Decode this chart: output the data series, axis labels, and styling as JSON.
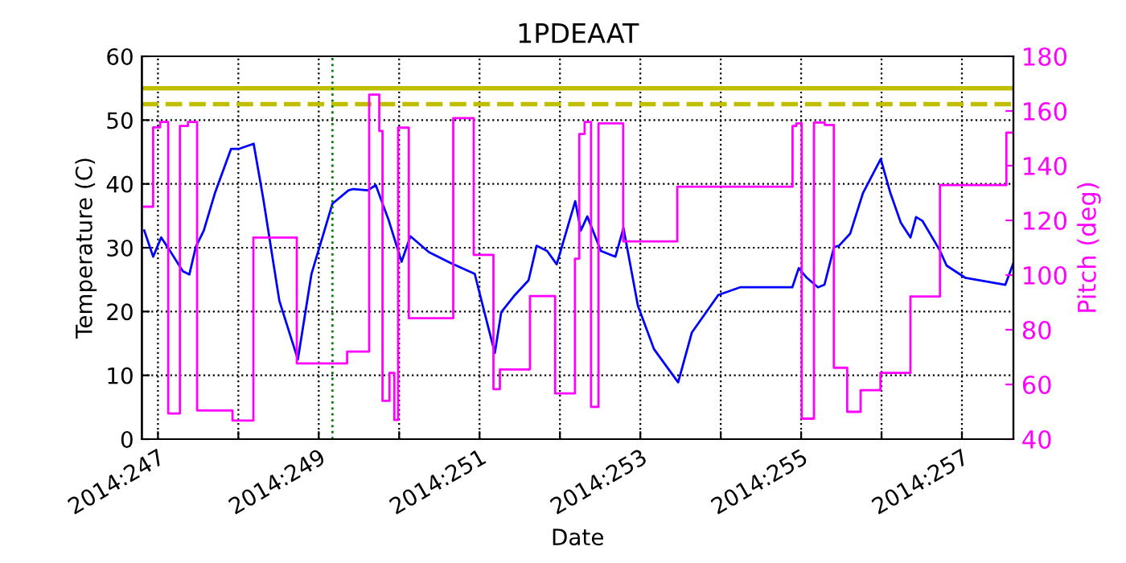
{
  "chart_data": {
    "type": "line",
    "title": "1PDEAAT",
    "xlabel": "Date",
    "ylabel": "Temperature (C)",
    "y2label": "Pitch (deg)",
    "xlim": [
      "2014-09-03T19:12",
      "2014-09-14T15:22"
    ],
    "ylim": [
      0,
      60
    ],
    "y2lim": [
      40,
      180
    ],
    "xticks": [
      {
        "value": "2014-09-04",
        "label": "2014:247"
      },
      {
        "value": "2014-09-05",
        "label": null
      },
      {
        "value": "2014-09-06",
        "label": "2014:249"
      },
      {
        "value": "2014-09-07",
        "label": null
      },
      {
        "value": "2014-09-08",
        "label": "2014:251"
      },
      {
        "value": "2014-09-09",
        "label": null
      },
      {
        "value": "2014-09-10",
        "label": "2014:253"
      },
      {
        "value": "2014-09-11",
        "label": null
      },
      {
        "value": "2014-09-12",
        "label": "2014:255"
      },
      {
        "value": "2014-09-13",
        "label": null
      },
      {
        "value": "2014-09-14",
        "label": "2014:257"
      }
    ],
    "yticks": [
      0,
      10,
      20,
      30,
      40,
      50,
      60
    ],
    "y2ticks": [
      40,
      60,
      80,
      100,
      120,
      140,
      160,
      180
    ],
    "grid": true,
    "marker": "none",
    "line_style": "solid",
    "series": [
      {
        "color": "#0000ff",
        "x": [
          "2014-09-03T19:55",
          "2014-09-03T22:34",
          "2014-09-04T00:58",
          "2014-09-04T03:22",
          "2014-09-04T07:26",
          "2014-09-04T09:22",
          "2014-09-04T11:17",
          "2014-09-04T13:41",
          "2014-09-04T17:02",
          "2014-09-04T21:50",
          "2014-09-05T00:14",
          "2014-09-05T04:34",
          "2014-09-05T07:26",
          "2014-09-05T12:14",
          "2014-09-05T17:46",
          "2014-09-05T21:50",
          "2014-09-06T04:05",
          "2014-09-06T08:53",
          "2014-09-06T10:19",
          "2014-09-06T14:38",
          "2014-09-06T17:02",
          "2014-09-06T20:53",
          "2014-09-07T00:43",
          "2014-09-07T03:22",
          "2014-09-07T08:53",
          "2014-09-07T15:22",
          "2014-09-07T22:34",
          "2014-09-08T00:58",
          "2014-09-08T04:34",
          "2014-09-08T06:29",
          "2014-09-08T10:34",
          "2014-09-08T14:38",
          "2014-09-08T17:02",
          "2014-09-08T20:10",
          "2014-09-08T23:02",
          "2014-09-09T04:34",
          "2014-09-09T06:14",
          "2014-09-09T08:10",
          "2014-09-09T12:14",
          "2014-09-09T16:34",
          "2014-09-09T18:58",
          "2014-09-09T23:17",
          "2014-09-10T04:05",
          "2014-09-10T11:17",
          "2014-09-10T15:22",
          "2014-09-10T23:17",
          "2014-09-11T05:46",
          "2014-09-11T21:22",
          "2014-09-11T23:17",
          "2014-09-12T01:41",
          "2014-09-12T05:02",
          "2014-09-12T06:58",
          "2014-09-12T09:50",
          "2014-09-12T11:17",
          "2014-09-12T14:38",
          "2014-09-12T18:29",
          "2014-09-12T23:46",
          "2014-09-13T02:38",
          "2014-09-13T05:46",
          "2014-09-13T08:38",
          "2014-09-13T10:19",
          "2014-09-13T12:14",
          "2014-09-13T17:17",
          "2014-09-13T19:26",
          "2014-09-14T00:58",
          "2014-09-14T12:58",
          "2014-09-14T15:22"
        ],
        "values": [
          32.7,
          28.6,
          31.6,
          29.7,
          26.3,
          25.8,
          30.1,
          32.7,
          38.6,
          45.5,
          45.5,
          46.3,
          37.7,
          21.7,
          12.5,
          25.9,
          36.9,
          39.0,
          39.2,
          39.0,
          39.8,
          34.3,
          27.8,
          31.8,
          29.3,
          27.6,
          25.9,
          20.9,
          13.5,
          19.9,
          22.6,
          24.9,
          30.3,
          29.5,
          27.4,
          37.3,
          32.7,
          34.9,
          29.5,
          28.6,
          33.1,
          20.9,
          14.1,
          8.9,
          16.7,
          22.6,
          23.8,
          23.8,
          26.8,
          25.3,
          23.8,
          24.2,
          30.1,
          30.3,
          32.2,
          38.6,
          43.9,
          38.6,
          33.9,
          31.6,
          34.8,
          34.2,
          29.7,
          27.2,
          25.3,
          24.2,
          27.6
        ]
      },
      {
        "type": "step",
        "axis": "y2",
        "color": "#ff00ff",
        "x": [
          "2014-09-03T19:55",
          "2014-09-03T22:34",
          "2014-09-04T00:39",
          "2014-09-04T03:03",
          "2014-09-04T06:33",
          "2014-09-04T08:57",
          "2014-09-04T11:41",
          "2014-09-04T22:15",
          "2014-09-05T04:29",
          "2014-09-05T17:27",
          "2014-09-06T08:28",
          "2014-09-06T15:03",
          "2014-09-06T18:04",
          "2014-09-06T19:02",
          "2014-09-06T21:07",
          "2014-09-06T22:34",
          "2014-09-06T23:41",
          "2014-09-07T02:53",
          "2014-09-07T16:09",
          "2014-09-07T22:15",
          "2014-09-08T04:09",
          "2014-09-08T06:04",
          "2014-09-08T15:03",
          "2014-09-08T22:34",
          "2014-09-09T04:29",
          "2014-09-09T05:46",
          "2014-09-09T07:22",
          "2014-09-09T09:17",
          "2014-09-09T11:31",
          "2014-09-09T18:53",
          "2014-09-10T11:02",
          "2014-09-11T21:26",
          "2014-09-11T22:34",
          "2014-09-12T00:10",
          "2014-09-12T03:50",
          "2014-09-12T07:02",
          "2014-09-12T09:46",
          "2014-09-12T13:45",
          "2014-09-12T17:46",
          "2014-09-12T23:41",
          "2014-09-13T08:38",
          "2014-09-13T17:27",
          "2014-09-14T13:16",
          "2014-09-14T15:22"
        ],
        "values": [
          125,
          154,
          156,
          49.4,
          154.5,
          156,
          50.5,
          46.8,
          113.7,
          67.7,
          72,
          166,
          152.7,
          54,
          64.2,
          47,
          153.9,
          84.2,
          157.4,
          107.4,
          58.3,
          65.5,
          92.3,
          56.7,
          106,
          151.6,
          156,
          51.8,
          155.5,
          112.3,
          132.3,
          154.5,
          155.5,
          47.5,
          155.8,
          154.9,
          66.1,
          50,
          57.9,
          64.2,
          92.2,
          132.9,
          152.1,
          152.1
        ]
      }
    ],
    "ref_lines": [
      {
        "axis": "y",
        "value": 55,
        "color": "#bfbf00",
        "line_style": "solid"
      },
      {
        "axis": "y",
        "value": 52.5,
        "color": "#bfbf00",
        "line_style": "dashed"
      },
      {
        "axis": "x",
        "value": "2014-09-06T04:05",
        "color": "#008000",
        "line_style": "dotted"
      }
    ]
  }
}
